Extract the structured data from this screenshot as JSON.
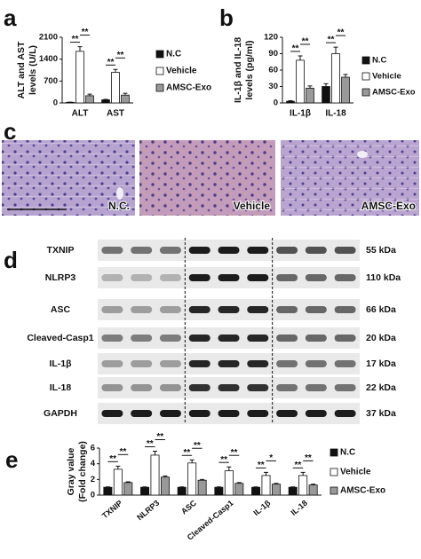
{
  "chart_data": [
    {
      "type": "bar",
      "label": "a",
      "ylabel": [
        "ALT and AST",
        "levels (U/L)"
      ],
      "categories": [
        "ALT",
        "AST"
      ],
      "series": [
        {
          "name": "N.C",
          "color": "#111111",
          "values": [
            20,
            100
          ],
          "errors": [
            5,
            15
          ]
        },
        {
          "name": "Vehicle",
          "color": "#ffffff",
          "values": [
            1650,
            980
          ],
          "errors": [
            150,
            90
          ]
        },
        {
          "name": "AMSC-Exo",
          "color": "#999999",
          "values": [
            230,
            250
          ],
          "errors": [
            50,
            60
          ]
        }
      ],
      "ylim": [
        0,
        2100
      ],
      "yticks": [
        0,
        700,
        1400,
        2100
      ],
      "significance": [
        [
          "**",
          "**"
        ],
        [
          "**",
          "**"
        ]
      ]
    },
    {
      "type": "bar",
      "label": "b",
      "ylabel": [
        "IL-1β and IL-18",
        "levels (pg/ml)"
      ],
      "categories": [
        "IL-1β",
        "IL-18"
      ],
      "series": [
        {
          "name": "N.C",
          "color": "#111111",
          "values": [
            3,
            30
          ],
          "errors": [
            1,
            5
          ]
        },
        {
          "name": "Vehicle",
          "color": "#ffffff",
          "values": [
            78,
            90
          ],
          "errors": [
            8,
            12
          ]
        },
        {
          "name": "AMSC-Exo",
          "color": "#999999",
          "values": [
            27,
            47
          ],
          "errors": [
            4,
            5
          ]
        }
      ],
      "ylim": [
        0,
        120
      ],
      "yticks": [
        0,
        30,
        60,
        90,
        120
      ],
      "significance": [
        [
          "**",
          "**"
        ],
        [
          "**",
          "**"
        ]
      ]
    },
    {
      "type": "bar",
      "label": "e",
      "ylabel": [
        "Gray value",
        "(Fold change)"
      ],
      "categories": [
        "TXNIP",
        "NLRP3",
        "ASC",
        "Cleaved-Casp1",
        "IL-1β",
        "IL-18"
      ],
      "series": [
        {
          "name": "N.C",
          "color": "#111111",
          "values": [
            1,
            1,
            1,
            1,
            1,
            1
          ],
          "errors": [
            0.05,
            0.05,
            0.05,
            0.05,
            0.05,
            0.05
          ]
        },
        {
          "name": "Vehicle",
          "color": "#ffffff",
          "values": [
            3.3,
            5.1,
            4.1,
            3.1,
            2.5,
            2.5
          ],
          "errors": [
            0.4,
            0.5,
            0.4,
            0.5,
            0.4,
            0.4
          ]
        },
        {
          "name": "AMSC-Exo",
          "color": "#999999",
          "values": [
            1.6,
            2.3,
            1.9,
            1.5,
            1.4,
            1.3
          ],
          "errors": [
            0.1,
            0.15,
            0.1,
            0.1,
            0.1,
            0.1
          ]
        }
      ],
      "ylim": [
        0,
        6
      ],
      "yticks": [
        0,
        2,
        4,
        6
      ],
      "significance": [
        [
          "**",
          "**"
        ],
        [
          "**",
          "**"
        ],
        [
          "**",
          "**"
        ],
        [
          "**",
          "**"
        ],
        [
          "**",
          "*"
        ],
        [
          "**",
          "**"
        ]
      ]
    }
  ],
  "panel_c": {
    "label": "c",
    "images": [
      "N.C.",
      "Vehicle",
      "AMSC-Exo"
    ]
  },
  "panel_d": {
    "label": "d",
    "rows": [
      {
        "name": "TXNIP",
        "size": "55 kDa"
      },
      {
        "name": "NLRP3",
        "size": "110 kDa"
      },
      {
        "name": "ASC",
        "size": "66 kDa"
      },
      {
        "name": "Cleaved-Casp1",
        "size": "20 kDa"
      },
      {
        "name": "IL-1β",
        "size": "17 kDa"
      },
      {
        "name": "IL-18",
        "size": "22 kDa"
      },
      {
        "name": "GAPDH",
        "size": "37 kDa"
      }
    ]
  }
}
